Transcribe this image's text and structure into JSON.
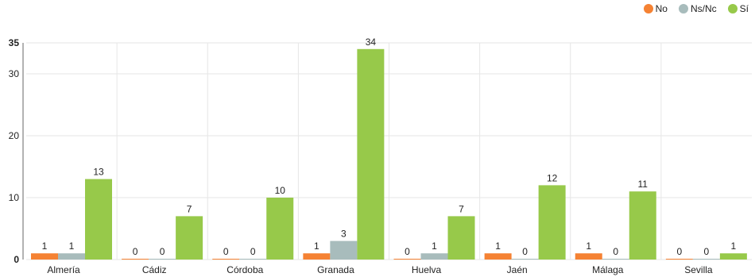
{
  "chart_data": {
    "type": "bar",
    "categories": [
      "Almería",
      "Cádiz",
      "Córdoba",
      "Granada",
      "Huelva",
      "Jaén",
      "Málaga",
      "Sevilla"
    ],
    "series": [
      {
        "name": "No",
        "color": "#f58233",
        "values": [
          1,
          0,
          0,
          1,
          0,
          1,
          1,
          0
        ]
      },
      {
        "name": "Ns/Nc",
        "color": "#a8bcbc",
        "values": [
          1,
          0,
          0,
          3,
          1,
          0,
          0,
          0
        ]
      },
      {
        "name": "Sí",
        "color": "#97c94a",
        "values": [
          13,
          7,
          10,
          34,
          7,
          12,
          11,
          1
        ]
      }
    ],
    "ylim": [
      0,
      35
    ],
    "yticks": [
      "0",
      "10",
      "20",
      "30",
      "35"
    ],
    "grid": true,
    "legend_position": "top-right",
    "data_labels": true
  }
}
